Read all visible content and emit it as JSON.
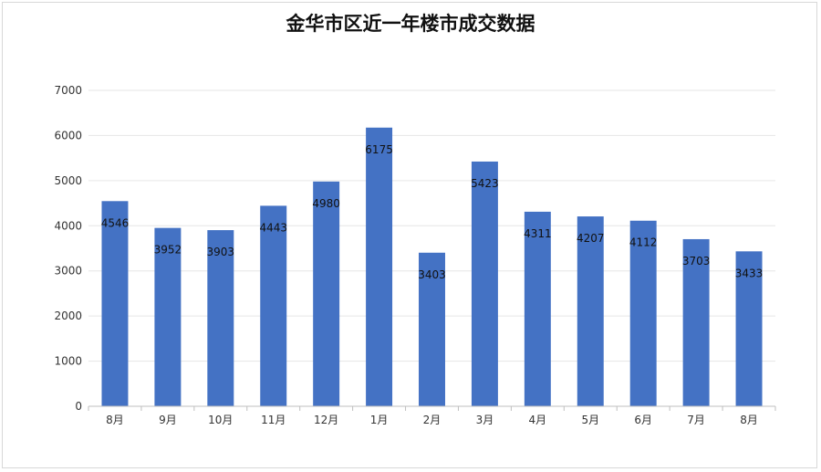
{
  "chart_data": {
    "type": "bar",
    "title": "金华市区近一年楼市成交数据",
    "categories": [
      "8月",
      "9月",
      "10月",
      "11月",
      "12月",
      "1月",
      "2月",
      "3月",
      "4月",
      "5月",
      "6月",
      "7月",
      "8月"
    ],
    "values": [
      4546,
      3952,
      3903,
      4443,
      4980,
      6175,
      3403,
      5423,
      4311,
      4207,
      4112,
      3703,
      3433
    ],
    "yticks": [
      0,
      1000,
      2000,
      3000,
      4000,
      5000,
      6000,
      7000
    ],
    "ylim": [
      0,
      7000
    ],
    "xlabel": "",
    "ylabel": "",
    "grid": true,
    "legend": "none",
    "bar_color": "#4472c4"
  }
}
